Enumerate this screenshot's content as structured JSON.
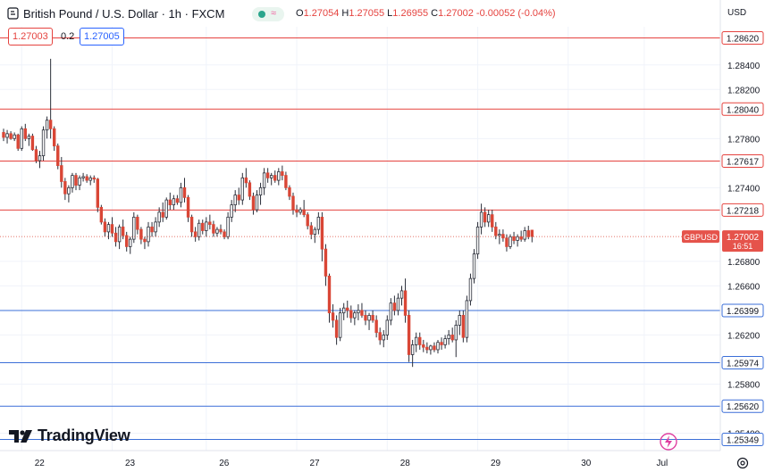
{
  "header": {
    "title": "British Pound / U.S. Dollar · 1h · FXCM",
    "ohlc": {
      "o_label": "O",
      "o": "1.27054",
      "h_label": "H",
      "h": "1.27055",
      "l_label": "L",
      "l": "1.26955",
      "c_label": "C",
      "c": "1.27002",
      "change": "-0.00052 (-0.04%)"
    },
    "sell_price": "1.27003",
    "spread": "0.2",
    "buy_price": "1.27005",
    "currency": "USD"
  },
  "logo": {
    "text": "TradingView"
  },
  "colors": {
    "up": "#ffffff",
    "down": "#d94636",
    "wick": "#2a2e39",
    "resistance": "#e5433f",
    "support": "#3b6fd8",
    "axis_text": "#131722",
    "price_tag": "#e5534b"
  },
  "icons": [
    "tradingview-logo-icon",
    "live-indicator-icon",
    "lightning-icon",
    "settings-icon",
    "back-arrow-icon"
  ],
  "chart_data": {
    "type": "candlestick",
    "symbol": "GBPUSD",
    "current_price": 1.27002,
    "current_price_label": "1.27002",
    "countdown": "16:51",
    "y_range": [
      1.2532,
      1.287
    ],
    "y_ticks": [
      1.284,
      1.282,
      1.278,
      1.274,
      1.268,
      1.266,
      1.262,
      1.258,
      1.254
    ],
    "y_tick_labels": [
      "1.28400",
      "1.28200",
      "1.27800",
      "1.27400",
      "1.26800",
      "1.26600",
      "1.26200",
      "1.25800",
      "1.25400"
    ],
    "x_labels": [
      "22",
      "23",
      "26",
      "27",
      "28",
      "29",
      "30",
      "Jul"
    ],
    "horizontal_levels": [
      {
        "price": 1.2862,
        "label": "1.28620",
        "kind": "resistance"
      },
      {
        "price": 1.2804,
        "label": "1.28040",
        "kind": "resistance"
      },
      {
        "price": 1.27617,
        "label": "1.27617",
        "kind": "resistance"
      },
      {
        "price": 1.27218,
        "label": "1.27218",
        "kind": "resistance"
      },
      {
        "price": 1.26399,
        "label": "1.26399",
        "kind": "support"
      },
      {
        "price": 1.25974,
        "label": "1.25974",
        "kind": "support"
      },
      {
        "price": 1.2562,
        "label": "1.25620",
        "kind": "support"
      },
      {
        "price": 1.25349,
        "label": "1.25349",
        "kind": "support"
      }
    ],
    "session_anchors": [
      {
        "label": "22",
        "index": 5
      },
      {
        "label": "23",
        "index": 30
      },
      {
        "label": "26",
        "index": 56
      },
      {
        "label": "27",
        "index": 81
      },
      {
        "label": "28",
        "index": 106
      },
      {
        "label": "29",
        "index": 131
      },
      {
        "label": "30",
        "index": 156
      },
      {
        "label": "Jul",
        "index": 177
      }
    ],
    "candles": [
      [
        1.2785,
        1.2788,
        1.2778,
        1.2781
      ],
      [
        1.2781,
        1.2787,
        1.2776,
        1.2784
      ],
      [
        1.2784,
        1.2786,
        1.2779,
        1.278
      ],
      [
        1.278,
        1.2785,
        1.2778,
        1.2783
      ],
      [
        1.2783,
        1.2784,
        1.277,
        1.2772
      ],
      [
        1.2772,
        1.279,
        1.277,
        1.2788
      ],
      [
        1.2788,
        1.2792,
        1.2778,
        1.278
      ],
      [
        1.278,
        1.2784,
        1.2774,
        1.2782
      ],
      [
        1.2782,
        1.2784,
        1.277,
        1.2771
      ],
      [
        1.2771,
        1.2774,
        1.276,
        1.2762
      ],
      [
        1.2762,
        1.277,
        1.2756,
        1.2766
      ],
      [
        1.2766,
        1.279,
        1.2762,
        1.2787
      ],
      [
        1.2787,
        1.2798,
        1.278,
        1.2795
      ],
      [
        1.2795,
        1.2845,
        1.278,
        1.2788
      ],
      [
        1.2788,
        1.279,
        1.277,
        1.2774
      ],
      [
        1.2774,
        1.2776,
        1.2755,
        1.2758
      ],
      [
        1.2758,
        1.2765,
        1.274,
        1.2745
      ],
      [
        1.2745,
        1.2748,
        1.273,
        1.2735
      ],
      [
        1.2735,
        1.2742,
        1.2728,
        1.274
      ],
      [
        1.274,
        1.2752,
        1.2736,
        1.275
      ],
      [
        1.275,
        1.2752,
        1.2738,
        1.2742
      ],
      [
        1.2742,
        1.275,
        1.2738,
        1.2748
      ],
      [
        1.2748,
        1.2752,
        1.2745,
        1.2749
      ],
      [
        1.2749,
        1.2751,
        1.2744,
        1.2746
      ],
      [
        1.2746,
        1.275,
        1.2742,
        1.2748
      ],
      [
        1.2748,
        1.275,
        1.2744,
        1.2747
      ],
      [
        1.2747,
        1.2748,
        1.272,
        1.2724
      ],
      [
        1.2724,
        1.2726,
        1.271,
        1.2712
      ],
      [
        1.2712,
        1.2715,
        1.27,
        1.2704
      ],
      [
        1.2704,
        1.2712,
        1.2698,
        1.271
      ],
      [
        1.271,
        1.2716,
        1.27,
        1.2703
      ],
      [
        1.2703,
        1.2708,
        1.2692,
        1.2696
      ],
      [
        1.2696,
        1.271,
        1.269,
        1.2708
      ],
      [
        1.2708,
        1.2714,
        1.2698,
        1.2701
      ],
      [
        1.2701,
        1.2704,
        1.2688,
        1.2692
      ],
      [
        1.2692,
        1.27,
        1.2686,
        1.2698
      ],
      [
        1.2698,
        1.272,
        1.2695,
        1.2716
      ],
      [
        1.2716,
        1.2718,
        1.2702,
        1.2706
      ],
      [
        1.2706,
        1.2708,
        1.2694,
        1.2698
      ],
      [
        1.2698,
        1.27,
        1.269,
        1.2696
      ],
      [
        1.2696,
        1.2712,
        1.2692,
        1.2708
      ],
      [
        1.2708,
        1.2712,
        1.27,
        1.2704
      ],
      [
        1.2704,
        1.2716,
        1.27,
        1.2712
      ],
      [
        1.2712,
        1.2724,
        1.2708,
        1.272
      ],
      [
        1.272,
        1.2728,
        1.2712,
        1.2716
      ],
      [
        1.2716,
        1.2732,
        1.2714,
        1.273
      ],
      [
        1.273,
        1.2736,
        1.2722,
        1.2726
      ],
      [
        1.2726,
        1.2734,
        1.2722,
        1.2731
      ],
      [
        1.2731,
        1.2734,
        1.2726,
        1.2728
      ],
      [
        1.2728,
        1.2744,
        1.2724,
        1.274
      ],
      [
        1.274,
        1.2748,
        1.2728,
        1.2732
      ],
      [
        1.2732,
        1.2734,
        1.2712,
        1.2716
      ],
      [
        1.2716,
        1.2718,
        1.27,
        1.2704
      ],
      [
        1.2704,
        1.2708,
        1.2696,
        1.27
      ],
      [
        1.27,
        1.2714,
        1.2697,
        1.2711
      ],
      [
        1.2711,
        1.2714,
        1.2702,
        1.2705
      ],
      [
        1.2705,
        1.2716,
        1.27,
        1.2712
      ],
      [
        1.2712,
        1.2718,
        1.2706,
        1.271
      ],
      [
        1.271,
        1.2713,
        1.27,
        1.2703
      ],
      [
        1.2703,
        1.2708,
        1.27,
        1.2706
      ],
      [
        1.2706,
        1.271,
        1.2702,
        1.2704
      ],
      [
        1.2704,
        1.2706,
        1.2698,
        1.27
      ],
      [
        1.27,
        1.272,
        1.2698,
        1.2716
      ],
      [
        1.2716,
        1.273,
        1.2712,
        1.2726
      ],
      [
        1.2726,
        1.2738,
        1.272,
        1.2734
      ],
      [
        1.2734,
        1.274,
        1.2726,
        1.273
      ],
      [
        1.273,
        1.2752,
        1.2726,
        1.2748
      ],
      [
        1.2748,
        1.2756,
        1.274,
        1.2744
      ],
      [
        1.2744,
        1.2746,
        1.273,
        1.2733
      ],
      [
        1.2733,
        1.2736,
        1.2718,
        1.2722
      ],
      [
        1.2722,
        1.2738,
        1.272,
        1.2734
      ],
      [
        1.2734,
        1.2744,
        1.2726,
        1.274
      ],
      [
        1.274,
        1.2756,
        1.2734,
        1.2752
      ],
      [
        1.2752,
        1.2756,
        1.2744,
        1.2748
      ],
      [
        1.2748,
        1.2752,
        1.2742,
        1.275
      ],
      [
        1.275,
        1.2754,
        1.2744,
        1.2746
      ],
      [
        1.2746,
        1.2756,
        1.2742,
        1.2753
      ],
      [
        1.2753,
        1.2758,
        1.2746,
        1.275
      ],
      [
        1.275,
        1.2753,
        1.2738,
        1.274
      ],
      [
        1.274,
        1.2742,
        1.273,
        1.2733
      ],
      [
        1.2733,
        1.2736,
        1.2718,
        1.2722
      ],
      [
        1.2722,
        1.2726,
        1.2716,
        1.272
      ],
      [
        1.272,
        1.2724,
        1.2718,
        1.2722
      ],
      [
        1.2722,
        1.273,
        1.2716,
        1.2718
      ],
      [
        1.2718,
        1.272,
        1.2706,
        1.2709
      ],
      [
        1.2709,
        1.2712,
        1.2698,
        1.2702
      ],
      [
        1.2702,
        1.2708,
        1.2695,
        1.2706
      ],
      [
        1.2706,
        1.272,
        1.2702,
        1.2716
      ],
      [
        1.2716,
        1.272,
        1.268,
        1.269
      ],
      [
        1.269,
        1.2694,
        1.266,
        1.2668
      ],
      [
        1.2668,
        1.267,
        1.263,
        1.2638
      ],
      [
        1.2638,
        1.2645,
        1.2626,
        1.2632
      ],
      [
        1.2632,
        1.2636,
        1.2612,
        1.2618
      ],
      [
        1.2618,
        1.2642,
        1.2615,
        1.2638
      ],
      [
        1.2638,
        1.2646,
        1.2632,
        1.2642
      ],
      [
        1.2642,
        1.2648,
        1.2634,
        1.264
      ],
      [
        1.264,
        1.2644,
        1.263,
        1.2634
      ],
      [
        1.2634,
        1.264,
        1.2628,
        1.2638
      ],
      [
        1.2638,
        1.2645,
        1.2632,
        1.264
      ],
      [
        1.264,
        1.2646,
        1.2634,
        1.2636
      ],
      [
        1.2636,
        1.264,
        1.2628,
        1.2632
      ],
      [
        1.2632,
        1.2638,
        1.2624,
        1.2636
      ],
      [
        1.2636,
        1.264,
        1.263,
        1.2632
      ],
      [
        1.2632,
        1.2636,
        1.2618,
        1.2622
      ],
      [
        1.2622,
        1.2626,
        1.2612,
        1.2616
      ],
      [
        1.2616,
        1.2624,
        1.261,
        1.262
      ],
      [
        1.262,
        1.2636,
        1.2616,
        1.2632
      ],
      [
        1.2632,
        1.265,
        1.2628,
        1.2646
      ],
      [
        1.2646,
        1.2652,
        1.2636,
        1.264
      ],
      [
        1.264,
        1.2654,
        1.2636,
        1.265
      ],
      [
        1.265,
        1.266,
        1.2644,
        1.2656
      ],
      [
        1.2656,
        1.2666,
        1.263,
        1.2636
      ],
      [
        1.2636,
        1.264,
        1.2598,
        1.2604
      ],
      [
        1.2604,
        1.2616,
        1.2594,
        1.2612
      ],
      [
        1.2612,
        1.2622,
        1.2606,
        1.2618
      ],
      [
        1.2618,
        1.2622,
        1.2608,
        1.2612
      ],
      [
        1.2612,
        1.2616,
        1.2606,
        1.261
      ],
      [
        1.261,
        1.2614,
        1.2605,
        1.2608
      ],
      [
        1.2608,
        1.2612,
        1.2604,
        1.2611
      ],
      [
        1.2611,
        1.2614,
        1.2606,
        1.2608
      ],
      [
        1.2608,
        1.2616,
        1.2605,
        1.2614
      ],
      [
        1.2614,
        1.2618,
        1.2608,
        1.2612
      ],
      [
        1.2612,
        1.262,
        1.2609,
        1.2617
      ],
      [
        1.2617,
        1.2624,
        1.2612,
        1.262
      ],
      [
        1.262,
        1.2626,
        1.2614,
        1.2616
      ],
      [
        1.2616,
        1.2632,
        1.2602,
        1.2628
      ],
      [
        1.2628,
        1.264,
        1.262,
        1.2636
      ],
      [
        1.2636,
        1.264,
        1.2614,
        1.2618
      ],
      [
        1.2618,
        1.2652,
        1.2614,
        1.2648
      ],
      [
        1.2648,
        1.267,
        1.2644,
        1.2666
      ],
      [
        1.2666,
        1.269,
        1.2662,
        1.2686
      ],
      [
        1.2686,
        1.2712,
        1.2682,
        1.2708
      ],
      [
        1.2708,
        1.2727,
        1.2702,
        1.272
      ],
      [
        1.272,
        1.2724,
        1.2708,
        1.2712
      ],
      [
        1.2712,
        1.2722,
        1.2708,
        1.2718
      ],
      [
        1.2718,
        1.2722,
        1.2704,
        1.2708
      ],
      [
        1.2708,
        1.2712,
        1.2698,
        1.2701
      ],
      [
        1.2701,
        1.2706,
        1.2694,
        1.2702
      ],
      [
        1.2702,
        1.2706,
        1.2696,
        1.2699
      ],
      [
        1.2699,
        1.2702,
        1.2688,
        1.2692
      ],
      [
        1.2692,
        1.2702,
        1.269,
        1.27
      ],
      [
        1.27,
        1.2704,
        1.2694,
        1.2697
      ],
      [
        1.2697,
        1.2702,
        1.2692,
        1.27
      ],
      [
        1.27,
        1.2705,
        1.2696,
        1.2698
      ],
      [
        1.2698,
        1.2708,
        1.2696,
        1.2705
      ],
      [
        1.2705,
        1.2709,
        1.2698,
        1.27
      ],
      [
        1.27054,
        1.27055,
        1.26955,
        1.27002
      ]
    ]
  }
}
